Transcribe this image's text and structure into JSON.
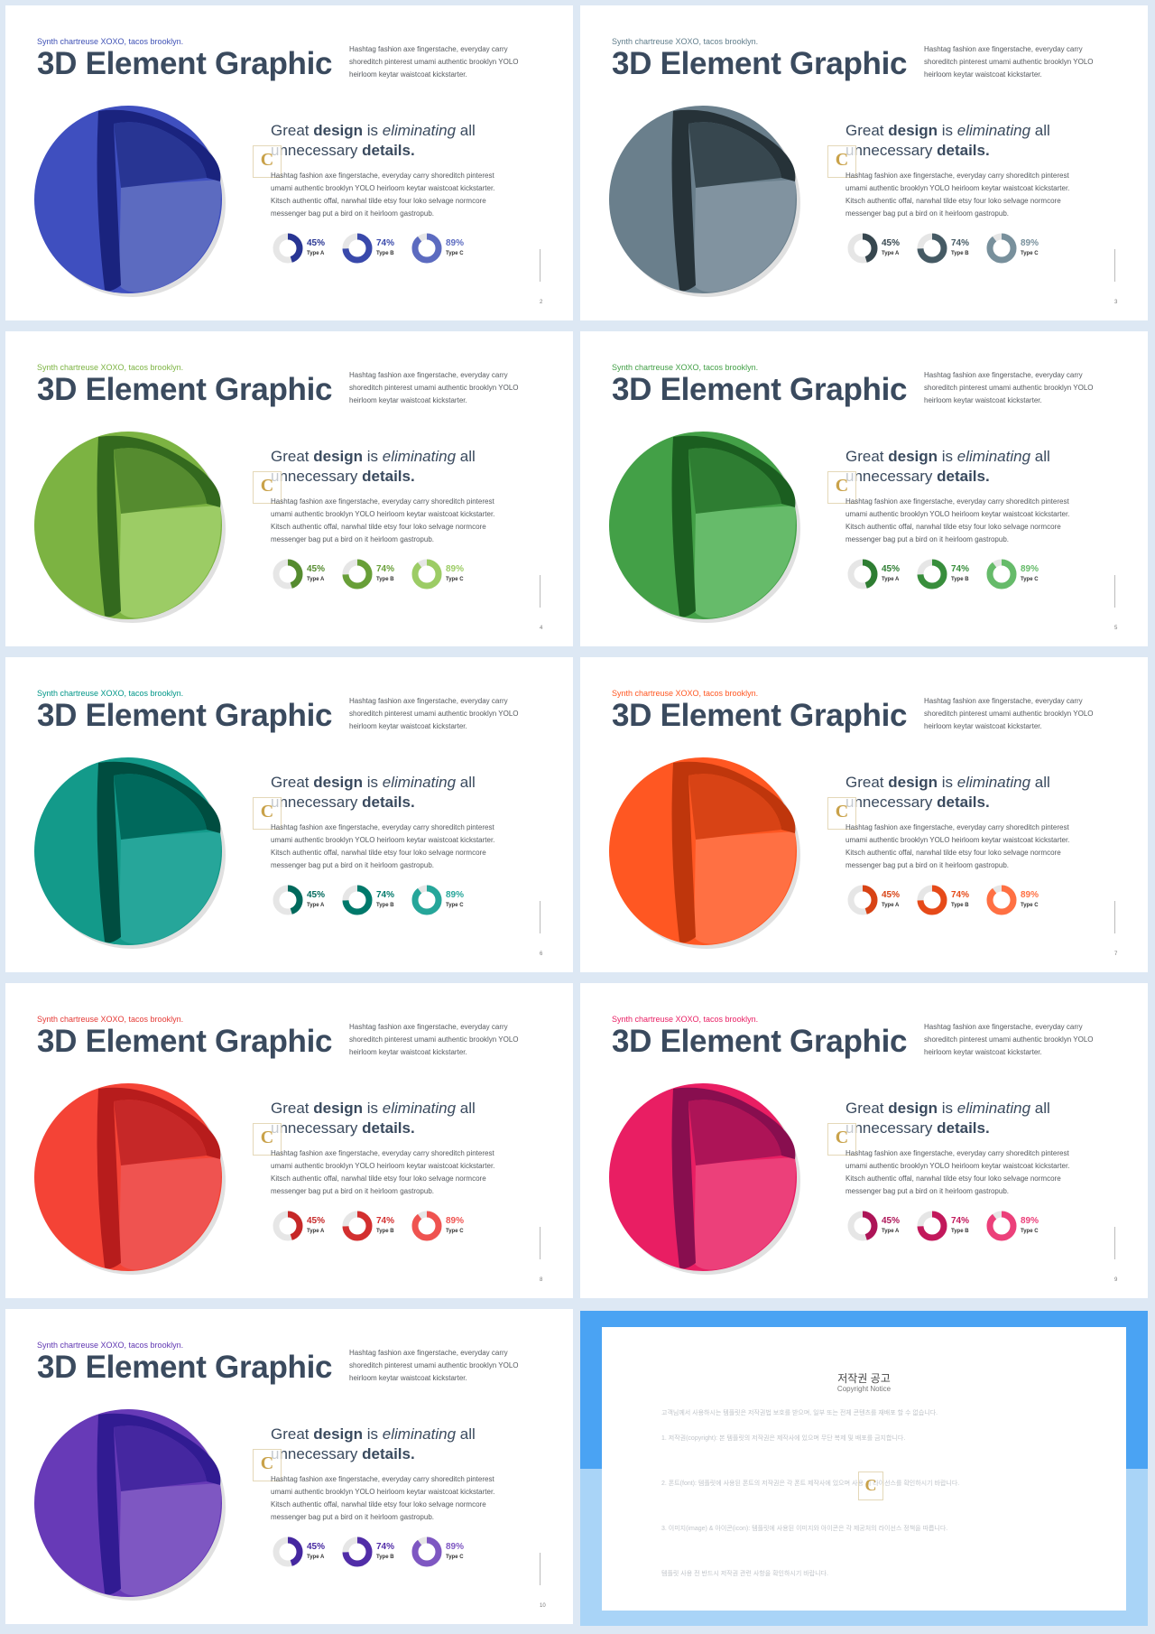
{
  "slide_template": {
    "kicker": "Synth chartreuse XOXO, tacos brooklyn.",
    "title": "3D Element Graphic",
    "top_desc": "Hashtag fashion axe fingerstache, everyday carry shoreditch pinterest umami authentic brooklyn YOLO heirloom keytar waistcoat kickstarter.",
    "headline": {
      "w1": "Great ",
      "w2": "design",
      "w3": " is ",
      "w4": "eliminating",
      "w5": " all unnecessary ",
      "w6": "details",
      "w7": "."
    },
    "logo_letter": "C",
    "body": "Hashtag fashion axe fingerstache, everyday carry shoreditch pinterest umami authentic brooklyn YOLO heirloom keytar waistcoat kickstarter. Kitsch authentic offal, narwhal tilde etsy four loko selvage normcore messenger bag put a bird on it heirloom gastropub.",
    "donuts": [
      {
        "pct_label": "45%",
        "value": 45,
        "type": "Type A"
      },
      {
        "pct_label": "74%",
        "value": 74,
        "type": "Type B"
      },
      {
        "pct_label": "89%",
        "value": 89,
        "type": "Type C"
      }
    ]
  },
  "slides": [
    {
      "page": "2",
      "colors": {
        "outer": "#3f4fbf",
        "inner": "#283593",
        "dark": "#1a237e",
        "light": "#5c6bc0",
        "kicker": "#3f51b5",
        "d1": "#283593",
        "d2": "#3949ab",
        "d3": "#5c6bc0"
      }
    },
    {
      "page": "3",
      "colors": {
        "outer": "#6a7f8c",
        "inner": "#37474f",
        "dark": "#263238",
        "light": "#8193a0",
        "kicker": "#607d8b",
        "d1": "#37474f",
        "d2": "#455a64",
        "d3": "#78909c"
      }
    },
    {
      "page": "4",
      "colors": {
        "outer": "#7cb342",
        "inner": "#558b2f",
        "dark": "#33691e",
        "light": "#9ccc65",
        "kicker": "#7cb342",
        "d1": "#558b2f",
        "d2": "#689f38",
        "d3": "#9ccc65"
      }
    },
    {
      "page": "5",
      "colors": {
        "outer": "#43a047",
        "inner": "#2e7d32",
        "dark": "#1b5e20",
        "light": "#66bb6a",
        "kicker": "#43a047",
        "d1": "#2e7d32",
        "d2": "#388e3c",
        "d3": "#66bb6a"
      }
    },
    {
      "page": "6",
      "colors": {
        "outer": "#139a8a",
        "inner": "#00695c",
        "dark": "#004d40",
        "light": "#26a69a",
        "kicker": "#009688",
        "d1": "#00695c",
        "d2": "#00796b",
        "d3": "#26a69a"
      }
    },
    {
      "page": "7",
      "colors": {
        "outer": "#ff5722",
        "inner": "#d84315",
        "dark": "#bf360c",
        "light": "#ff7043",
        "kicker": "#ff5722",
        "d1": "#d84315",
        "d2": "#e64a19",
        "d3": "#ff7043"
      }
    },
    {
      "page": "8",
      "colors": {
        "outer": "#f44336",
        "inner": "#c62828",
        "dark": "#b71c1c",
        "light": "#ef5350",
        "kicker": "#e53935",
        "d1": "#c62828",
        "d2": "#d32f2f",
        "d3": "#ef5350"
      }
    },
    {
      "page": "9",
      "colors": {
        "outer": "#e91e63",
        "inner": "#ad1457",
        "dark": "#880e4f",
        "light": "#ec407a",
        "kicker": "#e91e63",
        "d1": "#ad1457",
        "d2": "#c2185b",
        "d3": "#ec407a"
      }
    },
    {
      "page": "10",
      "colors": {
        "outer": "#673ab7",
        "inner": "#4527a0",
        "dark": "#311b92",
        "light": "#7e57c2",
        "kicker": "#5e35b1",
        "d1": "#4527a0",
        "d2": "#512da8",
        "d3": "#7e57c2"
      }
    }
  ],
  "notice": {
    "title": "저작권 공고",
    "subtitle": "Copyright Notice",
    "p1": "고객님께서 사용하시는 템플릿은 저작권법 보호를 받으며, 일부 또는 전체 콘텐츠를 재배포 할 수 없습니다.",
    "p2": "1. 저작권(copyright): 본 템플릿의 저작권은 제작사에 있으며 무단 복제 및 배포를 금지합니다.",
    "p3": "2. 폰트(font): 템플릿에 사용된 폰트의 저작권은 각 폰트 제작사에 있으며 사용 시 라이선스를 확인하시기 바랍니다.",
    "p4": "3. 이미지(image) & 아이콘(icon): 템플릿에 사용된 이미지와 아이콘은 각 제공처의 라이선스 정책을 따릅니다.",
    "p5": "템플릿 사용 전 반드시 저작권 관련 사항을 확인하시기 바랍니다.",
    "logo_letter": "C"
  }
}
